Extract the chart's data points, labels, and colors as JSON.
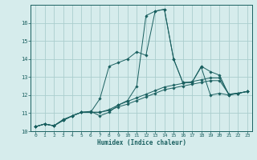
{
  "xlabel": "Humidex (Indice chaleur)",
  "bg_color": "#d6ecec",
  "grid_color": "#aacece",
  "line_color": "#1a6060",
  "xlim": [
    -0.5,
    23.5
  ],
  "ylim": [
    10,
    17
  ],
  "xticks": [
    0,
    1,
    2,
    3,
    4,
    5,
    6,
    7,
    8,
    9,
    10,
    11,
    12,
    13,
    14,
    15,
    16,
    17,
    18,
    19,
    20,
    21,
    22,
    23
  ],
  "yticks": [
    10,
    11,
    12,
    13,
    14,
    15,
    16
  ],
  "series": [
    {
      "x": [
        0,
        1,
        2,
        3,
        4,
        5,
        6,
        7,
        8,
        9,
        10,
        11,
        12,
        13,
        14,
        15,
        16,
        17,
        18,
        19,
        20,
        21,
        22,
        23
      ],
      "y": [
        10.25,
        10.4,
        10.3,
        10.65,
        10.85,
        11.05,
        11.1,
        10.85,
        11.05,
        11.45,
        11.7,
        12.5,
        16.4,
        16.65,
        16.75,
        14.0,
        12.7,
        12.7,
        13.6,
        13.3,
        13.1,
        12.0,
        12.1,
        12.2
      ]
    },
    {
      "x": [
        0,
        1,
        2,
        3,
        4,
        5,
        6,
        7,
        8,
        9,
        10,
        11,
        12,
        13,
        14,
        15,
        16,
        17,
        18,
        19,
        20,
        21,
        22,
        23
      ],
      "y": [
        10.25,
        10.4,
        10.3,
        10.6,
        10.85,
        11.05,
        11.05,
        11.8,
        13.6,
        13.8,
        14.0,
        14.4,
        14.2,
        16.65,
        16.75,
        14.0,
        12.7,
        12.7,
        13.55,
        12.0,
        12.1,
        12.0,
        12.1,
        12.2
      ]
    },
    {
      "x": [
        0,
        1,
        2,
        3,
        4,
        5,
        6,
        7,
        8,
        9,
        10,
        11,
        12,
        13,
        14,
        15,
        16,
        17,
        18,
        19,
        20,
        21,
        22,
        23
      ],
      "y": [
        10.25,
        10.4,
        10.3,
        10.6,
        10.85,
        11.05,
        11.05,
        11.05,
        11.2,
        11.45,
        11.65,
        11.85,
        12.05,
        12.25,
        12.45,
        12.55,
        12.65,
        12.75,
        12.85,
        12.95,
        12.95,
        12.05,
        12.1,
        12.2
      ]
    },
    {
      "x": [
        0,
        1,
        2,
        3,
        4,
        5,
        6,
        7,
        8,
        9,
        10,
        11,
        12,
        13,
        14,
        15,
        16,
        17,
        18,
        19,
        20,
        21,
        22,
        23
      ],
      "y": [
        10.25,
        10.4,
        10.3,
        10.6,
        10.85,
        11.05,
        11.05,
        11.05,
        11.15,
        11.35,
        11.5,
        11.7,
        11.9,
        12.1,
        12.3,
        12.4,
        12.5,
        12.6,
        12.7,
        12.8,
        12.8,
        12.05,
        12.1,
        12.2
      ]
    }
  ]
}
